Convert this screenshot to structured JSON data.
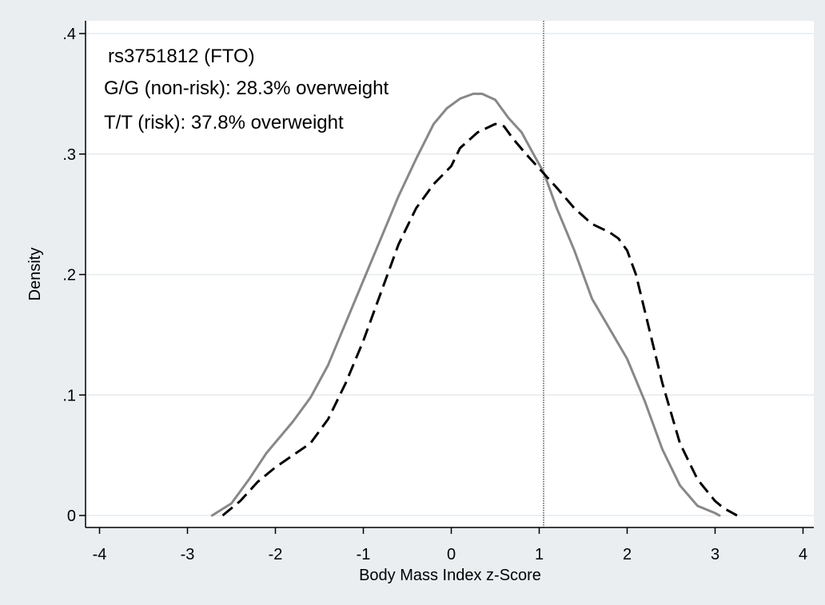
{
  "chart_data": {
    "type": "line",
    "title": "",
    "xlabel": "Body Mass Index z-Score",
    "ylabel": "Density",
    "xlim": [
      -4.1,
      4.15
    ],
    "ylim": [
      0,
      0.4
    ],
    "xticks": [
      -4,
      -3,
      -2,
      -1,
      0,
      1,
      2,
      3,
      4
    ],
    "xtick_labels": [
      "-4",
      "-3",
      "-2",
      "-1",
      "0",
      "1",
      "2",
      "3",
      "4"
    ],
    "yticks": [
      0,
      0.1,
      0.2,
      0.3,
      0.4
    ],
    "ytick_labels": [
      "0",
      ".1",
      ".2",
      ".3",
      ".4"
    ],
    "grid": "horizontal",
    "vline": 1.05,
    "annotations": [
      "rs3751812 (FTO)",
      "G/G (non-risk): 28.3% overweight",
      "T/T (risk): 37.8% overweight"
    ],
    "series": [
      {
        "style": "solid",
        "color": "#888888",
        "x": [
          -2.72,
          -2.5,
          -2.3,
          -2.1,
          -1.95,
          -1.8,
          -1.6,
          -1.4,
          -1.2,
          -1.0,
          -0.8,
          -0.6,
          -0.4,
          -0.2,
          -0.05,
          0.1,
          0.25,
          0.35,
          0.5,
          0.65,
          0.8,
          0.95,
          1.05,
          1.2,
          1.4,
          1.6,
          1.8,
          2.0,
          2.2,
          2.4,
          2.6,
          2.8,
          3.0,
          3.05
        ],
        "y": [
          0.0,
          0.01,
          0.03,
          0.052,
          0.065,
          0.078,
          0.098,
          0.125,
          0.16,
          0.195,
          0.23,
          0.265,
          0.296,
          0.325,
          0.338,
          0.346,
          0.35,
          0.35,
          0.345,
          0.33,
          0.318,
          0.298,
          0.285,
          0.255,
          0.22,
          0.18,
          0.155,
          0.13,
          0.095,
          0.055,
          0.025,
          0.008,
          0.002,
          0.0
        ]
      },
      {
        "style": "dashed",
        "color": "#000000",
        "x": [
          -2.6,
          -2.4,
          -2.2,
          -2.0,
          -1.8,
          -1.6,
          -1.4,
          -1.2,
          -1.0,
          -0.8,
          -0.6,
          -0.4,
          -0.2,
          0.0,
          0.1,
          0.3,
          0.5,
          0.6,
          0.7,
          0.85,
          1.0,
          1.2,
          1.4,
          1.6,
          1.8,
          1.9,
          2.0,
          2.1,
          2.2,
          2.4,
          2.6,
          2.8,
          3.0,
          3.1,
          3.25
        ],
        "y": [
          0.0,
          0.012,
          0.028,
          0.04,
          0.05,
          0.06,
          0.08,
          0.11,
          0.145,
          0.185,
          0.225,
          0.255,
          0.275,
          0.29,
          0.305,
          0.318,
          0.325,
          0.323,
          0.313,
          0.3,
          0.288,
          0.272,
          0.255,
          0.242,
          0.235,
          0.23,
          0.22,
          0.2,
          0.17,
          0.11,
          0.06,
          0.03,
          0.012,
          0.006,
          0.0
        ]
      }
    ]
  }
}
